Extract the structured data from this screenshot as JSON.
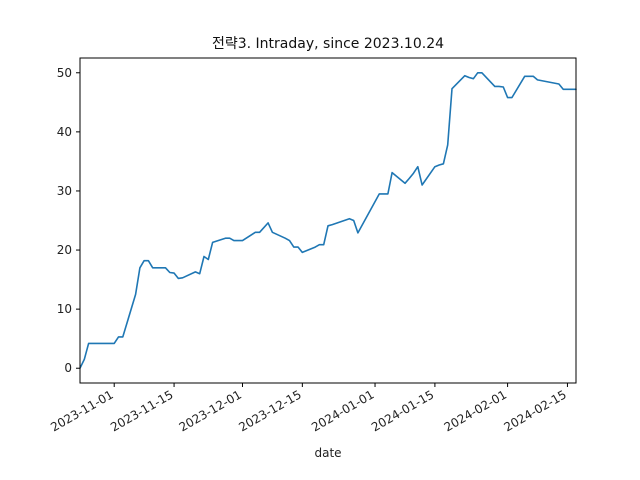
{
  "chart_data": {
    "type": "line",
    "title": "전략3. Intraday, since 2023.10.24",
    "xlabel": "date",
    "ylabel": "",
    "xlim": [
      "2023-10-24",
      "2024-02-17"
    ],
    "ylim": [
      -2.5,
      52.5
    ],
    "y_ticks": [
      0,
      10,
      20,
      30,
      40,
      50
    ],
    "x_ticks": [
      "2023-11-01",
      "2023-11-15",
      "2023-12-01",
      "2023-12-15",
      "2024-01-01",
      "2024-01-15",
      "2024-02-01",
      "2024-02-15"
    ],
    "grid": false,
    "line_color": "#1f77b4",
    "series": [
      {
        "x": [
          "2023-10-24",
          "2023-10-25",
          "2023-10-26",
          "2023-10-27",
          "2023-10-30",
          "2023-10-31",
          "2023-11-01",
          "2023-11-02",
          "2023-11-03",
          "2023-11-06",
          "2023-11-07",
          "2023-11-08",
          "2023-11-09",
          "2023-11-10",
          "2023-11-13",
          "2023-11-14",
          "2023-11-15",
          "2023-11-16",
          "2023-11-17",
          "2023-11-20",
          "2023-11-21",
          "2023-11-22",
          "2023-11-23",
          "2023-11-24",
          "2023-11-27",
          "2023-11-28",
          "2023-11-29",
          "2023-11-30",
          "2023-12-01",
          "2023-12-04",
          "2023-12-05",
          "2023-12-06",
          "2023-12-07",
          "2023-12-08",
          "2023-12-11",
          "2023-12-12",
          "2023-12-13",
          "2023-12-14",
          "2023-12-15",
          "2023-12-18",
          "2023-12-19",
          "2023-12-20",
          "2023-12-21",
          "2023-12-22",
          "2023-12-26",
          "2023-12-27",
          "2023-12-28",
          "2024-01-02",
          "2024-01-03",
          "2024-01-04",
          "2024-01-05",
          "2024-01-08",
          "2024-01-09",
          "2024-01-10",
          "2024-01-11",
          "2024-01-12",
          "2024-01-15",
          "2024-01-16",
          "2024-01-17",
          "2024-01-18",
          "2024-01-19",
          "2024-01-22",
          "2024-01-23",
          "2024-01-24",
          "2024-01-25",
          "2024-01-26",
          "2024-01-29",
          "2024-01-30",
          "2024-01-31",
          "2024-02-01",
          "2024-02-02",
          "2024-02-05",
          "2024-02-06",
          "2024-02-07",
          "2024-02-08",
          "2024-02-13",
          "2024-02-14",
          "2024-02-15",
          "2024-02-16",
          "2024-02-17"
        ],
        "y": [
          0.0,
          1.5,
          4.2,
          4.2,
          4.2,
          4.2,
          4.2,
          5.3,
          5.3,
          12.5,
          17.0,
          18.2,
          18.2,
          17.0,
          17.0,
          16.2,
          16.1,
          15.2,
          15.3,
          16.3,
          16.0,
          18.9,
          18.4,
          21.3,
          22.0,
          22.0,
          21.6,
          21.6,
          21.6,
          23.0,
          23.0,
          23.8,
          24.6,
          23.0,
          22.0,
          21.6,
          20.5,
          20.5,
          19.6,
          20.5,
          20.9,
          20.9,
          24.1,
          24.3,
          25.3,
          25.0,
          22.9,
          29.5,
          29.5,
          29.5,
          33.1,
          31.3,
          32.1,
          33.0,
          34.1,
          31.0,
          34.1,
          34.4,
          34.6,
          37.8,
          47.3,
          49.5,
          49.2,
          49.0,
          50.0,
          50.0,
          47.7,
          47.7,
          47.6,
          45.8,
          45.8,
          49.4,
          49.4,
          49.4,
          48.8,
          48.1,
          47.2,
          47.2,
          47.2,
          47.2
        ]
      }
    ]
  }
}
